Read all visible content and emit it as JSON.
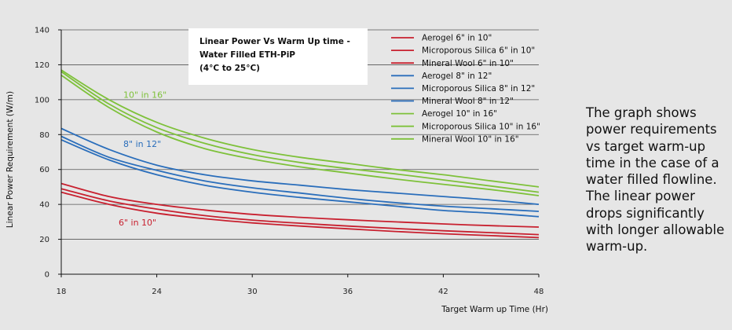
{
  "chart_data": {
    "type": "line",
    "title_lines": [
      "Linear Power Vs Warm Up time -",
      "Water Filled ETH-PiP",
      "(4°C to 25°C)"
    ],
    "xlabel": "Target Warm up Time (Hr)",
    "ylabel": "Linear Power Requirement (W/m)",
    "xlim": [
      18,
      48
    ],
    "ylim": [
      0,
      140
    ],
    "x_ticks": [
      18,
      24,
      30,
      36,
      42,
      48
    ],
    "y_ticks": [
      0,
      20,
      40,
      60,
      80,
      100,
      120,
      140
    ],
    "grid": "horizontal",
    "legend_position": "top-right",
    "x": [
      18,
      21,
      24,
      27,
      30,
      33,
      36,
      39,
      42,
      45,
      48
    ],
    "series": [
      {
        "name": "Aerogel 6\" in 10\"",
        "color": "#c8202f",
        "values": [
          52,
          44.5,
          40,
          36.8,
          34.3,
          32.6,
          31.2,
          30,
          28.8,
          27.8,
          27
        ]
      },
      {
        "name": "Microporous Silica 6\" in 10\"",
        "color": "#c8202f",
        "values": [
          49,
          42,
          37.3,
          33.6,
          31,
          29.2,
          27.6,
          26.2,
          24.9,
          23.8,
          22.7
        ]
      },
      {
        "name": "Mineral Wool 6\" in 10\"",
        "color": "#c8202f",
        "values": [
          47,
          40,
          35,
          31.8,
          29.4,
          27.6,
          26,
          24.5,
          23.2,
          22.1,
          21
        ]
      },
      {
        "name": "Aerogel 8\" in 12\"",
        "color": "#2a6ebb",
        "values": [
          83.5,
          71.5,
          62.5,
          57,
          53.5,
          51,
          48.5,
          46.5,
          44.5,
          42.5,
          40
        ]
      },
      {
        "name": "Microporous Silica 8\" in 12\"",
        "color": "#2a6ebb",
        "values": [
          79,
          67,
          59.5,
          53.5,
          49.5,
          46.5,
          43.5,
          41,
          39,
          37.5,
          36
        ]
      },
      {
        "name": "Mineral Wool 8\" in 12\"",
        "color": "#2a6ebb",
        "values": [
          77,
          65.5,
          57,
          51,
          47,
          44,
          41.5,
          39,
          36.5,
          35,
          33
        ]
      },
      {
        "name": "Aerogel 10\" in 16\"",
        "color": "#7ec13a",
        "values": [
          117,
          100,
          87,
          78,
          71.5,
          67,
          63.5,
          60,
          57,
          53.5,
          50
        ]
      },
      {
        "name": "Microporous Silica 10\" in 16\"",
        "color": "#7ec13a",
        "values": [
          116,
          97.5,
          84,
          75,
          68.5,
          64,
          60.5,
          57.5,
          54,
          50.5,
          47
        ]
      },
      {
        "name": "Mineral Wool 10\" in 16\"",
        "color": "#7ec13a",
        "values": [
          114,
          95.5,
          81.5,
          72,
          66,
          61.5,
          58,
          54.5,
          51.5,
          48.5,
          45
        ]
      }
    ],
    "annotations": [
      {
        "text": "10\" in 16\"",
        "x": 21.9,
        "y": 101,
        "color": "#7ec13a"
      },
      {
        "text": "8\" in 12\"",
        "x": 21.9,
        "y": 73,
        "color": "#2a6ebb"
      },
      {
        "text": "6\" in 10\"",
        "x": 21.6,
        "y": 28,
        "color": "#c8202f"
      }
    ]
  },
  "caption": "The graph shows power requirements vs target warm-up time in the case of a water filled flowline. The linear power drops significantly with longer allowable warm-up."
}
